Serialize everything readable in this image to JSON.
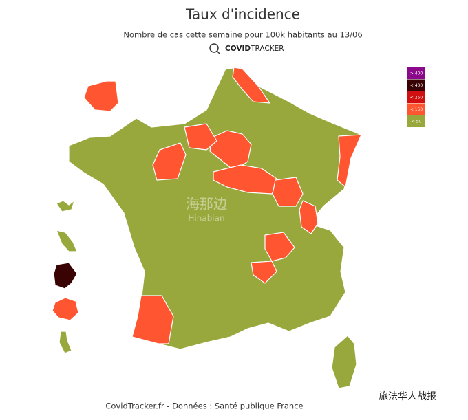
{
  "header": {
    "title": "Taux d'incidence",
    "subtitle": "Nombre de cas cette semaine pour 100k habitants au 13/06",
    "brand_bold": "COVID",
    "brand_light": "TRACKER"
  },
  "legend": [
    {
      "label": "> 400",
      "color": "#8b0a8b"
    },
    {
      "label": "< 400",
      "color": "#3a0303"
    },
    {
      "label": "< 250",
      "color": "#d01010"
    },
    {
      "label": "< 150",
      "color": "#ff5530"
    },
    {
      "label": "< 50",
      "color": "#99a83c"
    }
  ],
  "watermark": {
    "cn": "海那边",
    "en": "Hinabian"
  },
  "footer": "CovidTracker.fr - Données : Santé publique France",
  "wechat": "旅法华人战报"
}
